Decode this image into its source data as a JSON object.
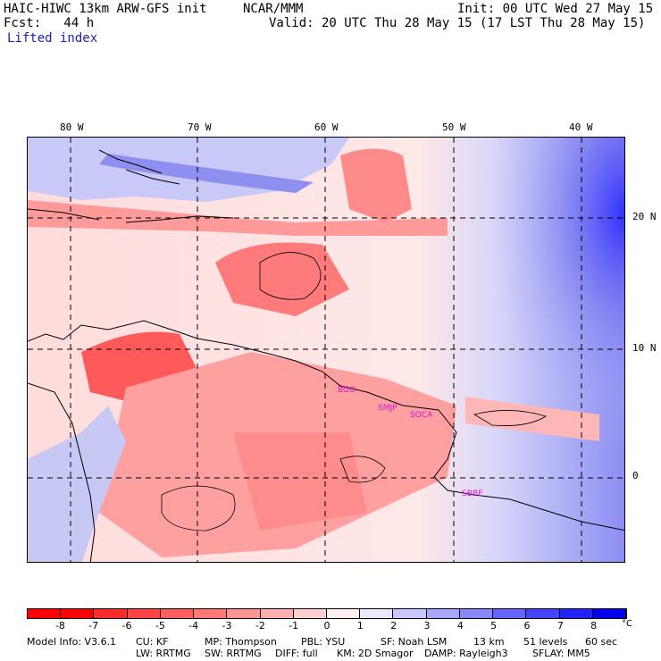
{
  "header": {
    "model": "HAIC-HIWC 13km ARW-GFS init",
    "org": "NCAR/MMM",
    "init": "Init: 00 UTC Wed 27 May 15",
    "fcst": "Fcst:   44 h",
    "valid": "Valid: 20 UTC Thu 28 May 15 (17 LST Thu 28 May 15)",
    "field": "Lifted index"
  },
  "map": {
    "lon_labels": [
      "80 W",
      "70 W",
      "60 W",
      "50 W",
      "40 W"
    ],
    "lat_labels": [
      "20 N",
      "10 N",
      "0"
    ],
    "sites": [
      "BGO",
      "SMJP",
      "SOCA",
      "SBBE"
    ]
  },
  "colorbar": {
    "unit": "°C",
    "ticks": [
      "-8",
      "-7",
      "-6",
      "-5",
      "-4",
      "-3",
      "-2",
      "-1",
      "0",
      "1",
      "2",
      "3",
      "4",
      "5",
      "6",
      "7",
      "8"
    ],
    "colors": [
      "#ff0000",
      "#ff2a2a",
      "#ff4444",
      "#ff5e5e",
      "#ff7878",
      "#ff9494",
      "#ffb0b0",
      "#ffd0d0",
      "#fff0f0",
      "#e8e8ff",
      "#c8c8ff",
      "#a8a8ff",
      "#8888ff",
      "#6464ff",
      "#4444ff",
      "#2222ff",
      "#0000ee"
    ]
  },
  "footer": {
    "line1": [
      "Model Info: V3.6.1",
      "CU: KF",
      "MP: Thompson",
      "PBL: YSU",
      "SF: Noah LSM",
      "13 km",
      "51 levels",
      "60 sec"
    ],
    "line2": [
      "LW: RRTMG",
      "SW: RRTMG",
      "DIFF: full",
      "KM: 2D Smagor",
      "DAMP: Rayleigh3",
      "SFLAY: MM5"
    ]
  }
}
